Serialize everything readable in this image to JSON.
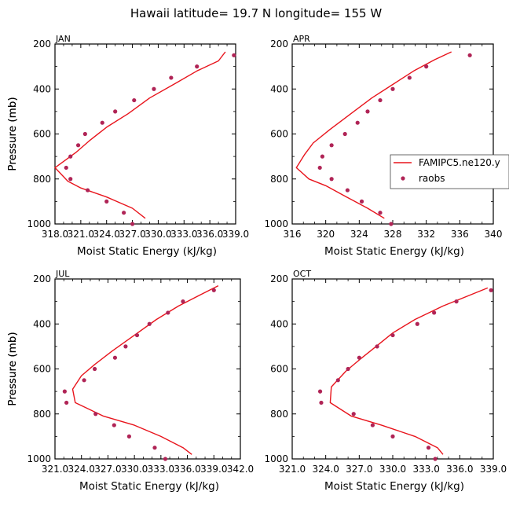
{
  "title": "Hawaii   latitude= 19.7 N longitude= 155 W",
  "colors": {
    "model_line": "#e8141c",
    "obs_points": "#b02456",
    "axes": "#000000"
  },
  "legend": [
    {
      "name": "FAMIPC5.ne120.y",
      "marker": "line"
    },
    {
      "name": "raobs",
      "marker": "dot"
    }
  ],
  "chart_data": [
    {
      "type": "line",
      "title": "JAN",
      "xlabel": "Moist Static Energy (kJ/kg)",
      "ylabel": "Pressure (mb)",
      "xlim": [
        318.0,
        339.0
      ],
      "ylim": [
        1000,
        200
      ],
      "xticks": [
        318.0,
        321.0,
        324.0,
        327.0,
        330.0,
        333.0,
        336.0,
        339.0
      ],
      "xtick_labels": [
        "318.0",
        "321.0",
        "324.0",
        "327.0",
        "330.0",
        "333.0",
        "336.0",
        "339.0"
      ],
      "yticks": [
        200,
        400,
        600,
        800,
        1000
      ],
      "ytick_labels": [
        "200",
        "400",
        "600",
        "800",
        "1000"
      ],
      "series": [
        {
          "name": "FAMIPC5.ne120.y",
          "x": [
            337.8,
            337.0,
            334.5,
            332.0,
            329.0,
            326.5,
            324.0,
            322.0,
            320.5,
            318.0,
            319.5,
            321.0,
            324.0,
            327.0,
            328.5
          ],
          "y": [
            235,
            275,
            320,
            375,
            440,
            510,
            570,
            630,
            680,
            750,
            810,
            840,
            880,
            930,
            975
          ]
        },
        {
          "name": "raobs",
          "x": [
            338.8,
            334.5,
            331.5,
            329.5,
            327.2,
            325.0,
            323.5,
            321.5,
            320.7,
            319.8,
            319.3,
            319.8,
            321.8,
            324.0,
            326.0,
            327.0
          ],
          "y": [
            250,
            300,
            350,
            400,
            450,
            500,
            550,
            600,
            650,
            700,
            750,
            800,
            850,
            900,
            950,
            1000
          ]
        }
      ]
    },
    {
      "type": "line",
      "title": "APR",
      "xlabel": "Moist Static Energy (kJ/kg)",
      "ylabel": "Pressure (mb)",
      "xlim": [
        316,
        340
      ],
      "ylim": [
        1000,
        200
      ],
      "xticks": [
        316,
        320,
        324,
        328,
        332,
        336,
        340
      ],
      "xtick_labels": [
        "316",
        "320",
        "324",
        "328",
        "332",
        "336",
        "340"
      ],
      "yticks": [
        200,
        400,
        600,
        800,
        1000
      ],
      "ytick_labels": [
        "200",
        "400",
        "600",
        "800",
        "1000"
      ],
      "series": [
        {
          "name": "FAMIPC5.ne120.y",
          "x": [
            335.0,
            333.0,
            330.5,
            328.0,
            325.5,
            323.0,
            320.5,
            318.5,
            317.5,
            316.5,
            318.0,
            320.0,
            322.5,
            325.0,
            327.0
          ],
          "y": [
            235,
            270,
            320,
            380,
            440,
            510,
            580,
            640,
            690,
            750,
            800,
            830,
            880,
            930,
            975
          ]
        },
        {
          "name": "raobs",
          "x": [
            337.2,
            332.0,
            330.0,
            328.0,
            326.5,
            325.0,
            323.8,
            322.3,
            320.7,
            319.6,
            319.3,
            320.7,
            322.6,
            324.3,
            326.5,
            327.8
          ],
          "y": [
            250,
            300,
            350,
            400,
            450,
            500,
            550,
            600,
            650,
            700,
            750,
            800,
            850,
            900,
            950,
            1000
          ]
        }
      ]
    },
    {
      "type": "line",
      "title": "JUL",
      "xlabel": "Moist Static Energy (kJ/kg)",
      "ylabel": "Pressure (mb)",
      "xlim": [
        321.0,
        342.0
      ],
      "ylim": [
        1000,
        200
      ],
      "xticks": [
        321.0,
        324.0,
        327.0,
        330.0,
        333.0,
        336.0,
        339.0,
        342.0
      ],
      "xtick_labels": [
        "321.0",
        "324.0",
        "327.0",
        "330.0",
        "333.0",
        "336.0",
        "339.0",
        "342.0"
      ],
      "yticks": [
        200,
        400,
        600,
        800,
        1000
      ],
      "ytick_labels": [
        "200",
        "400",
        "600",
        "800",
        "1000"
      ],
      "series": [
        {
          "name": "FAMIPC5.ne120.y",
          "x": [
            339.5,
            337.5,
            335.0,
            332.5,
            330.0,
            327.5,
            325.5,
            324.0,
            323.0,
            323.3,
            326.5,
            330.0,
            333.0,
            335.5,
            336.5
          ],
          "y": [
            230,
            270,
            320,
            380,
            450,
            520,
            580,
            630,
            690,
            750,
            810,
            850,
            900,
            950,
            980
          ]
        },
        {
          "name": "raobs",
          "x": [
            339.0,
            335.5,
            333.8,
            331.7,
            330.3,
            329.0,
            327.8,
            325.5,
            324.3,
            322.1,
            322.3,
            325.6,
            327.7,
            329.4,
            332.3,
            333.5
          ],
          "y": [
            250,
            300,
            350,
            400,
            450,
            500,
            550,
            600,
            650,
            700,
            750,
            800,
            850,
            900,
            950,
            1000
          ]
        }
      ]
    },
    {
      "type": "line",
      "title": "OCT",
      "xlabel": "Moist Static Energy (kJ/kg)",
      "ylabel": "Pressure (mb)",
      "xlim": [
        321.0,
        339.0
      ],
      "ylim": [
        1000,
        200
      ],
      "xticks": [
        321.0,
        324.0,
        327.0,
        330.0,
        333.0,
        336.0,
        339.0
      ],
      "xtick_labels": [
        "321.0",
        "324.0",
        "327.0",
        "330.0",
        "333.0",
        "336.0",
        "339.0"
      ],
      "yticks": [
        200,
        400,
        600,
        800,
        1000
      ],
      "ytick_labels": [
        "200",
        "400",
        "600",
        "800",
        "1000"
      ],
      "series": [
        {
          "name": "FAMIPC5.ne120.y",
          "x": [
            338.5,
            337.0,
            334.5,
            332.0,
            330.0,
            328.5,
            327.0,
            325.8,
            324.5,
            324.4,
            326.3,
            329.0,
            332.0,
            334.0,
            334.5
          ],
          "y": [
            240,
            270,
            320,
            380,
            440,
            500,
            560,
            610,
            680,
            750,
            810,
            850,
            900,
            950,
            980
          ]
        },
        {
          "name": "raobs",
          "x": [
            338.8,
            335.7,
            333.7,
            332.2,
            330.0,
            328.6,
            327.0,
            326.0,
            325.1,
            323.5,
            323.6,
            326.5,
            328.2,
            330.0,
            333.2,
            333.8
          ],
          "y": [
            250,
            300,
            350,
            400,
            450,
            500,
            550,
            600,
            650,
            700,
            750,
            800,
            850,
            900,
            950,
            1000
          ]
        }
      ]
    }
  ]
}
